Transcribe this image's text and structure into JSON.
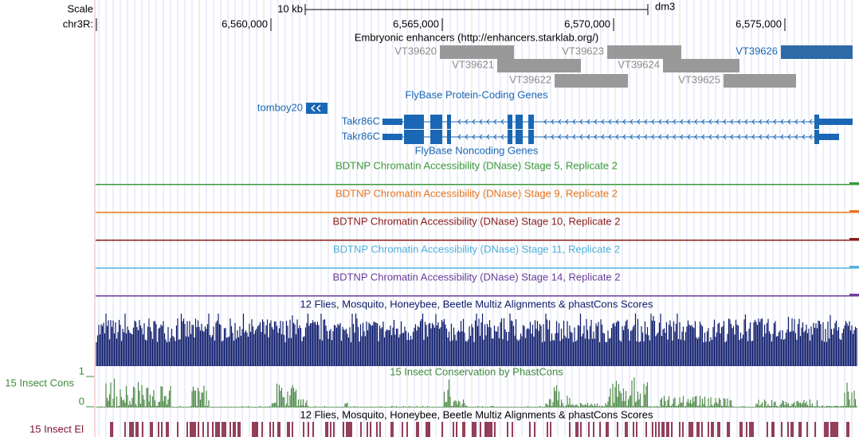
{
  "header": {
    "scale_label": "Scale",
    "scale_bar": "10 kb",
    "assembly": "dm3",
    "chrom": "chr3R:",
    "ruler": [
      "6,560,000",
      "6,565,000",
      "6,570,000",
      "6,575,000"
    ]
  },
  "tracks": {
    "enhancers": {
      "title": "Embryonic enhancers (http://enhancers.starklab.org/)",
      "items": [
        "VT39620",
        "VT39621",
        "VT39622",
        "VT39623",
        "VT39624",
        "VT39625",
        "VT39626"
      ]
    },
    "protein_coding": {
      "title": "FlyBase Protein-Coding Genes",
      "genes": [
        "tomboy20",
        "Takr86C",
        "Takr86C"
      ]
    },
    "noncoding": {
      "title": "FlyBase Noncoding Genes"
    },
    "dnase": [
      "BDTNP Chromatin Accessibility (DNase) Stage 5, Replicate 2",
      "BDTNP Chromatin Accessibility (DNase) Stage 9, Replicate 2",
      "BDTNP Chromatin Accessibility (DNase) Stage 10, Replicate 2",
      "BDTNP Chromatin Accessibility (DNase) Stage 11, Replicate 2",
      "BDTNP Chromatin Accessibility (DNase) Stage 14, Replicate 2"
    ],
    "multiz": {
      "title": "12 Flies, Mosquito, Honeybee, Beetle Multiz Alignments & phastCons Scores"
    },
    "cons": {
      "label": "15 Insect Cons",
      "title": "15 Insect Conservation by PhastCons",
      "max": "1",
      "min": "0"
    },
    "elements": {
      "title": "12 Flies, Mosquito, Honeybee, Beetle Multiz Alignments & phastCons Scores",
      "label": "15 Insect El"
    }
  }
}
